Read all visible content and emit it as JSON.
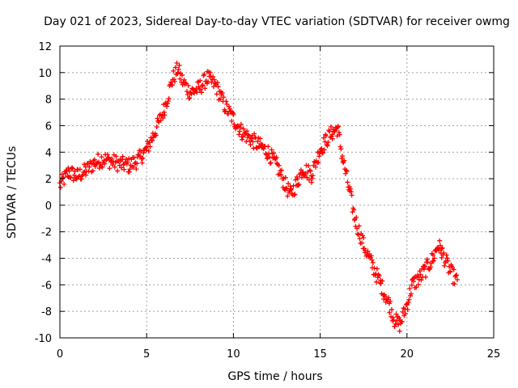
{
  "chart_data": {
    "type": "scatter",
    "title": "Day 021 of 2023, Sidereal Day-to-day VTEC variation (SDTVAR) for receiver owmg",
    "xlabel": "GPS time / hours",
    "ylabel": "SDTVAR / TECUs",
    "xlim": [
      0,
      25
    ],
    "ylim": [
      -10,
      12
    ],
    "x_ticks": [
      "0",
      "5",
      "10",
      "15",
      "20",
      "25"
    ],
    "y_ticks": [
      "-10",
      "-8",
      "-6",
      "-4",
      "-2",
      "0",
      "2",
      "4",
      "6",
      "8",
      "10",
      "12"
    ],
    "grid": true,
    "marker": "+",
    "color": "#ff0000",
    "series": [
      {
        "name": "SDTVAR",
        "x": [
          0,
          0.5,
          1,
          1.5,
          2,
          2.5,
          3,
          3.5,
          4,
          4.5,
          5,
          5.5,
          6,
          6.5,
          6.8,
          7,
          7.5,
          8,
          8.5,
          9,
          9.5,
          10,
          10.5,
          11,
          11.5,
          12,
          12.5,
          13,
          13.3,
          13.7,
          14,
          14.5,
          15,
          15.3,
          15.7,
          16,
          16.3,
          16.7,
          17,
          17.5,
          18,
          18.5,
          19,
          19.3,
          19.6,
          20,
          20.3,
          20.7,
          21,
          21.5,
          21.8,
          22,
          22.5,
          22.9
        ],
        "y": [
          1.5,
          2.5,
          2.2,
          2.6,
          3.2,
          3.5,
          3.3,
          3.1,
          3.0,
          3.4,
          4.2,
          5.6,
          7.2,
          9.5,
          10.3,
          9.5,
          8.5,
          8.8,
          9.6,
          9.0,
          7.5,
          6.5,
          5.5,
          5.0,
          4.5,
          4.0,
          3.0,
          1.5,
          0.8,
          1.8,
          2.8,
          2.3,
          4.2,
          4.8,
          5.5,
          5.8,
          3.5,
          1.0,
          -1.0,
          -3.0,
          -4.5,
          -6.0,
          -7.5,
          -8.7,
          -9.0,
          -7.5,
          -6.0,
          -5.5,
          -5.0,
          -4.0,
          -3.0,
          -3.5,
          -5.0,
          -5.8
        ]
      }
    ]
  }
}
